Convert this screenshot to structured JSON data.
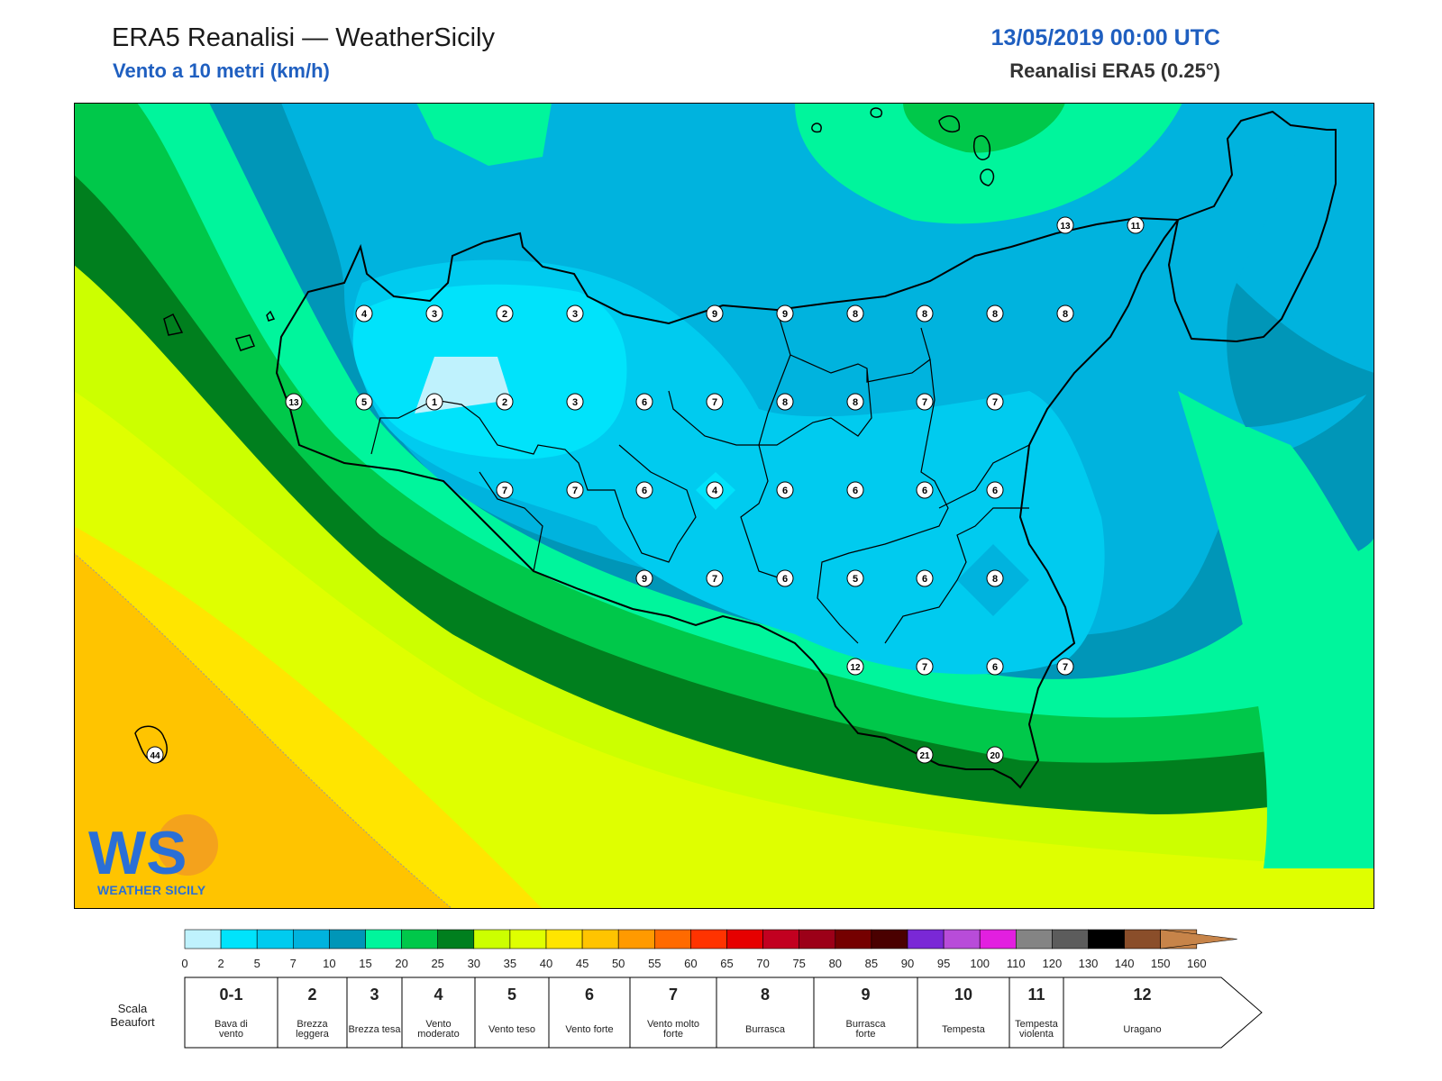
{
  "header": {
    "title": "ERA5 Reanalisi — WeatherSicily",
    "subtitle": "Vento a 10 metri (km/h)",
    "datetime": "13/05/2019 00:00 UTC",
    "source": "Reanalisi ERA5 (0.25°)"
  },
  "colors": {
    "accent_blue": "#1f5fc0",
    "coast": "#000000",
    "label_bg": "#ffffff"
  },
  "map": {
    "region": "Sicily",
    "wind_labels": [
      "13",
      "11",
      "4",
      "3",
      "2",
      "3",
      "9",
      "9",
      "8",
      "8",
      "8",
      "8",
      "13",
      "5",
      "1",
      "2",
      "3",
      "6",
      "7",
      "8",
      "8",
      "7",
      "7",
      "7",
      "7",
      "6",
      "4",
      "6",
      "6",
      "6",
      "6",
      "9",
      "7",
      "6",
      "5",
      "6",
      "8",
      "12",
      "7",
      "6",
      "7",
      "44",
      "21",
      "20"
    ]
  },
  "color_scale": {
    "ticks": [
      "0",
      "2",
      "5",
      "7",
      "10",
      "15",
      "20",
      "25",
      "30",
      "35",
      "40",
      "45",
      "50",
      "55",
      "60",
      "65",
      "70",
      "75",
      "80",
      "85",
      "90",
      "95",
      "100",
      "110",
      "120",
      "130",
      "140",
      "150",
      "160"
    ],
    "colors": [
      "#bff2fd",
      "#00e3fb",
      "#00cbef",
      "#00b3de",
      "#0096b8",
      "#00f59c",
      "#00c84a",
      "#007f1e",
      "#ccff00",
      "#dfff00",
      "#ffe500",
      "#ffc400",
      "#ff9a00",
      "#ff6a00",
      "#ff3300",
      "#e60000",
      "#c20020",
      "#9c0018",
      "#750000",
      "#4a0000",
      "#7a28d6",
      "#b84cd9",
      "#e21fe0",
      "#848484",
      "#5c5c5c",
      "#000000",
      "#8a4e2a",
      "#c78449"
    ]
  },
  "beaufort": {
    "title": "Scala\nBeaufort",
    "levels": [
      {
        "num": "0-1",
        "desc": "Bava di vento"
      },
      {
        "num": "2",
        "desc": "Brezza leggera"
      },
      {
        "num": "3",
        "desc": "Brezza tesa"
      },
      {
        "num": "4",
        "desc": "Vento moderato"
      },
      {
        "num": "5",
        "desc": "Vento teso"
      },
      {
        "num": "6",
        "desc": "Vento forte"
      },
      {
        "num": "7",
        "desc": "Vento molto forte"
      },
      {
        "num": "8",
        "desc": "Burrasca"
      },
      {
        "num": "9",
        "desc": "Burrasca forte"
      },
      {
        "num": "10",
        "desc": "Tempesta"
      },
      {
        "num": "11",
        "desc": "Tempesta violenta"
      },
      {
        "num": "12",
        "desc": "Uragano"
      }
    ]
  },
  "logo": {
    "letters": "WS",
    "name": "WEATHER SICILY"
  }
}
